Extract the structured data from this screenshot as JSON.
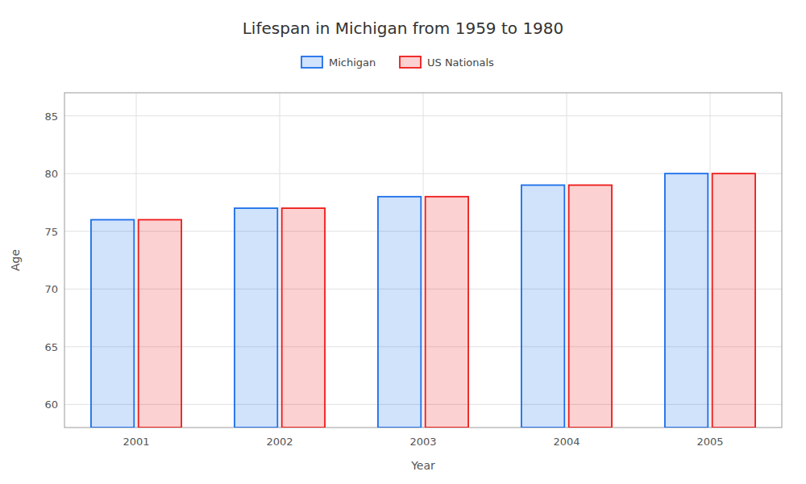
{
  "chart_data": {
    "type": "bar",
    "title": "Lifespan in Michigan from 1959 to 1980",
    "x_label": "Year",
    "y_label": "Age",
    "categories": [
      "2001",
      "2002",
      "2003",
      "2004",
      "2005"
    ],
    "series": [
      {
        "name": "Michigan",
        "color": "#1a6eea",
        "values": [
          76,
          77,
          78,
          79,
          80
        ]
      },
      {
        "name": "US Nationals",
        "color": "#ee1a1a",
        "values": [
          76,
          77,
          78,
          79,
          80
        ]
      }
    ],
    "ylim": [
      58,
      87
    ],
    "yticks": [
      60,
      65,
      70,
      75,
      80,
      85
    ],
    "grid": true,
    "legend": "top"
  }
}
